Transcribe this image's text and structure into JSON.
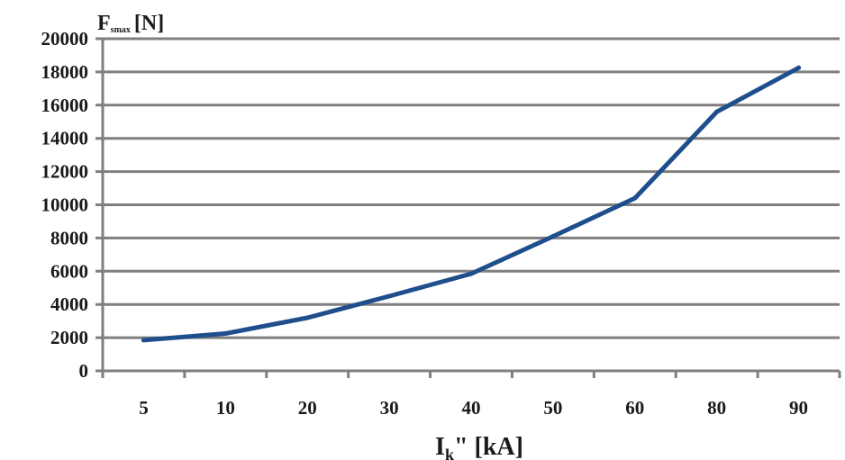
{
  "chart_data": {
    "type": "line",
    "title": "",
    "ylabel": {
      "main": "F",
      "sub": "smax",
      "unit": "[N]"
    },
    "xlabel": {
      "main": "I",
      "sub": "k",
      "suffix": "\" [kA]"
    },
    "categories": [
      "5",
      "10",
      "20",
      "30",
      "40",
      "50",
      "60",
      "80",
      "90"
    ],
    "series": [
      {
        "values": [
          1850,
          2250,
          3200,
          4500,
          5850,
          8100,
          10400,
          15600,
          18250
        ]
      }
    ],
    "ylim": [
      0,
      20000
    ],
    "yticks": [
      "0",
      "2000",
      "4000",
      "6000",
      "8000",
      "10000",
      "12000",
      "14000",
      "16000",
      "18000",
      "20000"
    ],
    "ytick_step": 2000,
    "grid": "horizontal",
    "legend": "none",
    "colors": {
      "series": "#1f4e8c",
      "grid": "#7f7f7f",
      "text": "#1a1a1a"
    }
  }
}
